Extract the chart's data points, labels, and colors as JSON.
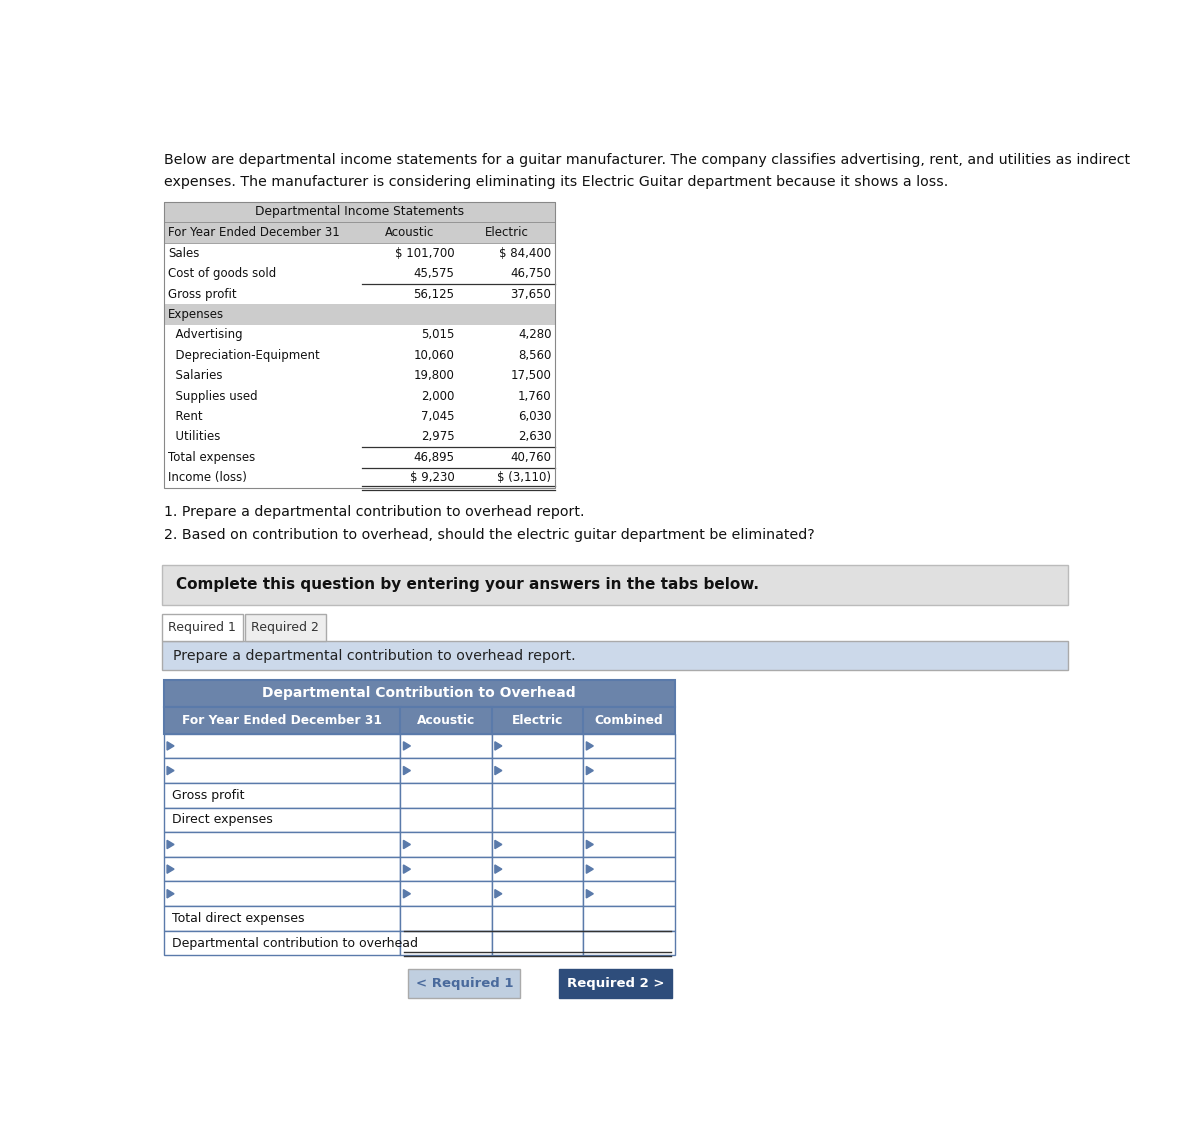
{
  "intro_text_line1": "Below are departmental income statements for a guitar manufacturer. The company classifies advertising, rent, and utilities as indirect",
  "intro_text_line2": "expenses. The manufacturer is considering eliminating its Electric Guitar department because it shows a loss.",
  "table1_title": "Departmental Income Statements",
  "table1_subtitle": "For Year Ended December 31",
  "table1_col_headers": [
    "Acoustic",
    "Electric"
  ],
  "table1_rows": [
    [
      "Sales",
      "$ 101,700",
      "$ 84,400"
    ],
    [
      "Cost of goods sold",
      "45,575",
      "46,750"
    ],
    [
      "Gross profit",
      "56,125",
      "37,650"
    ],
    [
      "Expenses",
      "",
      ""
    ],
    [
      "  Advertising",
      "5,015",
      "4,280"
    ],
    [
      "  Depreciation-Equipment",
      "10,060",
      "8,560"
    ],
    [
      "  Salaries",
      "19,800",
      "17,500"
    ],
    [
      "  Supplies used",
      "2,000",
      "1,760"
    ],
    [
      "  Rent",
      "7,045",
      "6,030"
    ],
    [
      "  Utilities",
      "2,975",
      "2,630"
    ],
    [
      "Total expenses",
      "46,895",
      "40,760"
    ],
    [
      "Income (loss)",
      "$ 9,230",
      "$ (3,110)"
    ]
  ],
  "underline_after_rows": [
    1,
    9,
    10
  ],
  "double_underline_rows": [
    11
  ],
  "expenses_shaded_rows": [
    3
  ],
  "required_items": [
    "1. Prepare a departmental contribution to overhead report.",
    "2. Based on contribution to overhead, should the electric guitar department be eliminated?"
  ],
  "complete_text": "Complete this question by entering your answers in the tabs below.",
  "tab1_label": "Required 1",
  "tab2_label": "Required 2",
  "prepare_text": "Prepare a departmental contribution to overhead report.",
  "table2_title": "Departmental Contribution to Overhead",
  "table2_subtitle": "For Year Ended December 31",
  "table2_col_headers": [
    "Acoustic",
    "Electric",
    "Combined"
  ],
  "table2_rows": [
    {
      "type": "input",
      "label": ""
    },
    {
      "type": "input",
      "label": ""
    },
    {
      "type": "label",
      "label": "Gross profit"
    },
    {
      "type": "label_section",
      "label": "Direct expenses"
    },
    {
      "type": "input",
      "label": ""
    },
    {
      "type": "input",
      "label": ""
    },
    {
      "type": "input",
      "label": ""
    },
    {
      "type": "label_underline",
      "label": "Total direct expenses"
    },
    {
      "type": "label_double_underline",
      "label": "Departmental contribution to overhead"
    }
  ],
  "btn1_label": "< Required 1",
  "btn2_label": "Required 2 >",
  "page_bg": "#ffffff",
  "table1_header_bg": "#cccccc",
  "table1_expenses_bg": "#cccccc",
  "table2_title_bg": "#6b84aa",
  "table2_header_text": "#ffffff",
  "table2_cell_border": "#5a7aaa",
  "complete_box_bg": "#e0e0e0",
  "complete_box_border": "#bbbbbb",
  "prepare_box_bg": "#ccd9ea",
  "tab1_bg": "#ffffff",
  "tab1_border": "#aaaaaa",
  "tab2_bg": "#eeeeee",
  "tab2_border": "#aaaaaa",
  "btn1_bg": "#c0cfe0",
  "btn1_text": "#4a6a9c",
  "btn2_bg": "#2e4d7b",
  "btn2_text": "#ffffff",
  "arrow_color": "#5a7aaa"
}
